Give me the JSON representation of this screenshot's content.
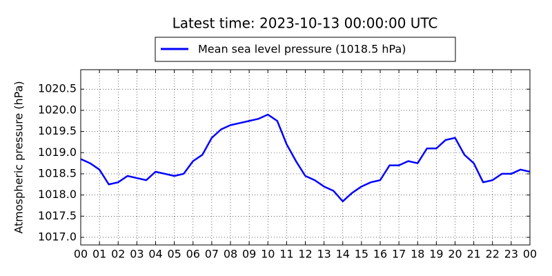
{
  "chart_data": {
    "type": "line",
    "title": "Latest time: 2023-10-13 00:00:00 UTC",
    "y_label": "Atmospheric pressure (hPa)",
    "x": [
      0,
      0.5,
      1,
      1.5,
      2,
      2.5,
      3,
      3.5,
      4,
      4.5,
      5,
      5.5,
      6,
      6.5,
      7,
      7.5,
      8,
      8.5,
      9,
      9.5,
      10,
      10.5,
      11,
      11.5,
      12,
      12.5,
      13,
      13.5,
      14,
      14.5,
      15,
      15.5,
      16,
      16.5,
      17,
      17.5,
      18,
      18.5,
      19,
      19.5,
      20,
      20.5,
      21,
      21.5,
      22,
      22.5,
      23,
      23.5,
      24
    ],
    "series": [
      {
        "name": "Mean sea level pressure (1018.5 hPa)",
        "color": "#0000ff",
        "values": [
          1018.85,
          1018.75,
          1018.6,
          1018.25,
          1018.3,
          1018.45,
          1018.4,
          1018.35,
          1018.55,
          1018.5,
          1018.45,
          1018.5,
          1018.8,
          1018.95,
          1019.35,
          1019.55,
          1019.65,
          1019.7,
          1019.75,
          1019.8,
          1019.9,
          1019.75,
          1019.2,
          1018.8,
          1018.45,
          1018.35,
          1018.2,
          1018.1,
          1017.85,
          1018.05,
          1018.2,
          1018.3,
          1018.35,
          1018.7,
          1018.7,
          1018.8,
          1018.75,
          1019.1,
          1019.1,
          1019.3,
          1019.35,
          1018.95,
          1018.75,
          1018.3,
          1018.35,
          1018.5,
          1018.5,
          1018.6,
          1018.55
        ]
      }
    ],
    "xlim": [
      0,
      24
    ],
    "xticks": [
      {
        "value": 0,
        "label": "00"
      },
      {
        "value": 1,
        "label": "01"
      },
      {
        "value": 2,
        "label": "02"
      },
      {
        "value": 3,
        "label": "03"
      },
      {
        "value": 4,
        "label": "04"
      },
      {
        "value": 5,
        "label": "05"
      },
      {
        "value": 6,
        "label": "06"
      },
      {
        "value": 7,
        "label": "07"
      },
      {
        "value": 8,
        "label": "08"
      },
      {
        "value": 9,
        "label": "09"
      },
      {
        "value": 10,
        "label": "10"
      },
      {
        "value": 11,
        "label": "11"
      },
      {
        "value": 12,
        "label": "12"
      },
      {
        "value": 13,
        "label": "13"
      },
      {
        "value": 14,
        "label": "14"
      },
      {
        "value": 15,
        "label": "15"
      },
      {
        "value": 16,
        "label": "16"
      },
      {
        "value": 17,
        "label": "17"
      },
      {
        "value": 18,
        "label": "18"
      },
      {
        "value": 19,
        "label": "19"
      },
      {
        "value": 20,
        "label": "20"
      },
      {
        "value": 21,
        "label": "21"
      },
      {
        "value": 22,
        "label": "22"
      },
      {
        "value": 23,
        "label": "23"
      },
      {
        "value": 24,
        "label": "00"
      }
    ],
    "ylim": [
      1016.82,
      1020.96
    ],
    "yticks": [
      {
        "value": 1017,
        "label": "1017.0"
      },
      1017.5,
      {
        "value": 1018,
        "label": "1018.0"
      },
      1018.5,
      {
        "value": 1019,
        "label": "1019.0"
      },
      1019.5,
      {
        "value": 1020,
        "label": "1020.0"
      },
      1020.5
    ],
    "grid": true
  }
}
